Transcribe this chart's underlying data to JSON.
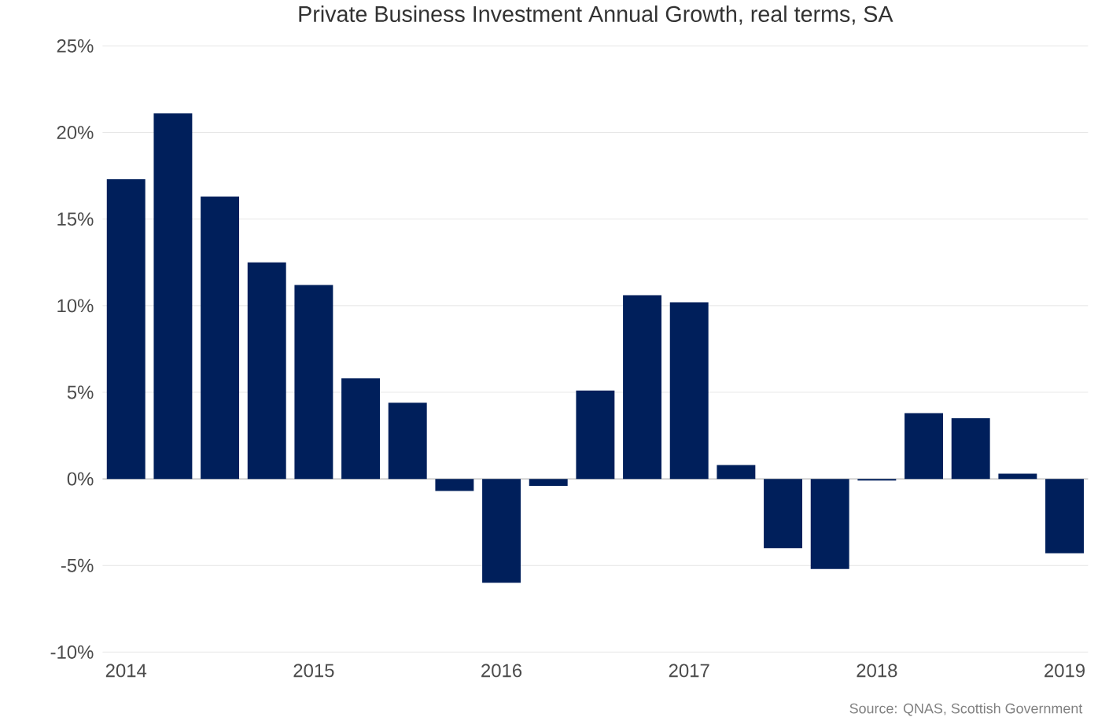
{
  "chart_data": {
    "type": "bar",
    "title": "Private Business Investment Annual Growth, real terms, SA",
    "categories": [
      "2014",
      null,
      null,
      null,
      "2015",
      null,
      null,
      null,
      "2016",
      null,
      null,
      null,
      "2017",
      null,
      null,
      null,
      "2018",
      null,
      null,
      null,
      "2019"
    ],
    "values": [
      17.3,
      21.1,
      16.3,
      12.5,
      11.2,
      5.8,
      4.4,
      -0.7,
      -6.0,
      -0.4,
      5.1,
      10.6,
      10.2,
      0.8,
      -4.0,
      -5.2,
      -0.1,
      3.8,
      3.5,
      0.3,
      -4.3
    ],
    "color": "#001f5b",
    "ylim": [
      -10,
      25
    ],
    "yticks": [
      {
        "value": -10,
        "label": "-10%"
      },
      {
        "value": -5,
        "label": "-5%"
      },
      {
        "value": 0,
        "label": "0%"
      },
      {
        "value": 5,
        "label": "5%"
      },
      {
        "value": 10,
        "label": "10%"
      },
      {
        "value": 15,
        "label": "15%"
      },
      {
        "value": 20,
        "label": "20%"
      },
      {
        "value": 25,
        "label": "25%"
      }
    ],
    "grid": "y",
    "annotations": [
      "Source: QNAS, Scottish Government"
    ]
  }
}
